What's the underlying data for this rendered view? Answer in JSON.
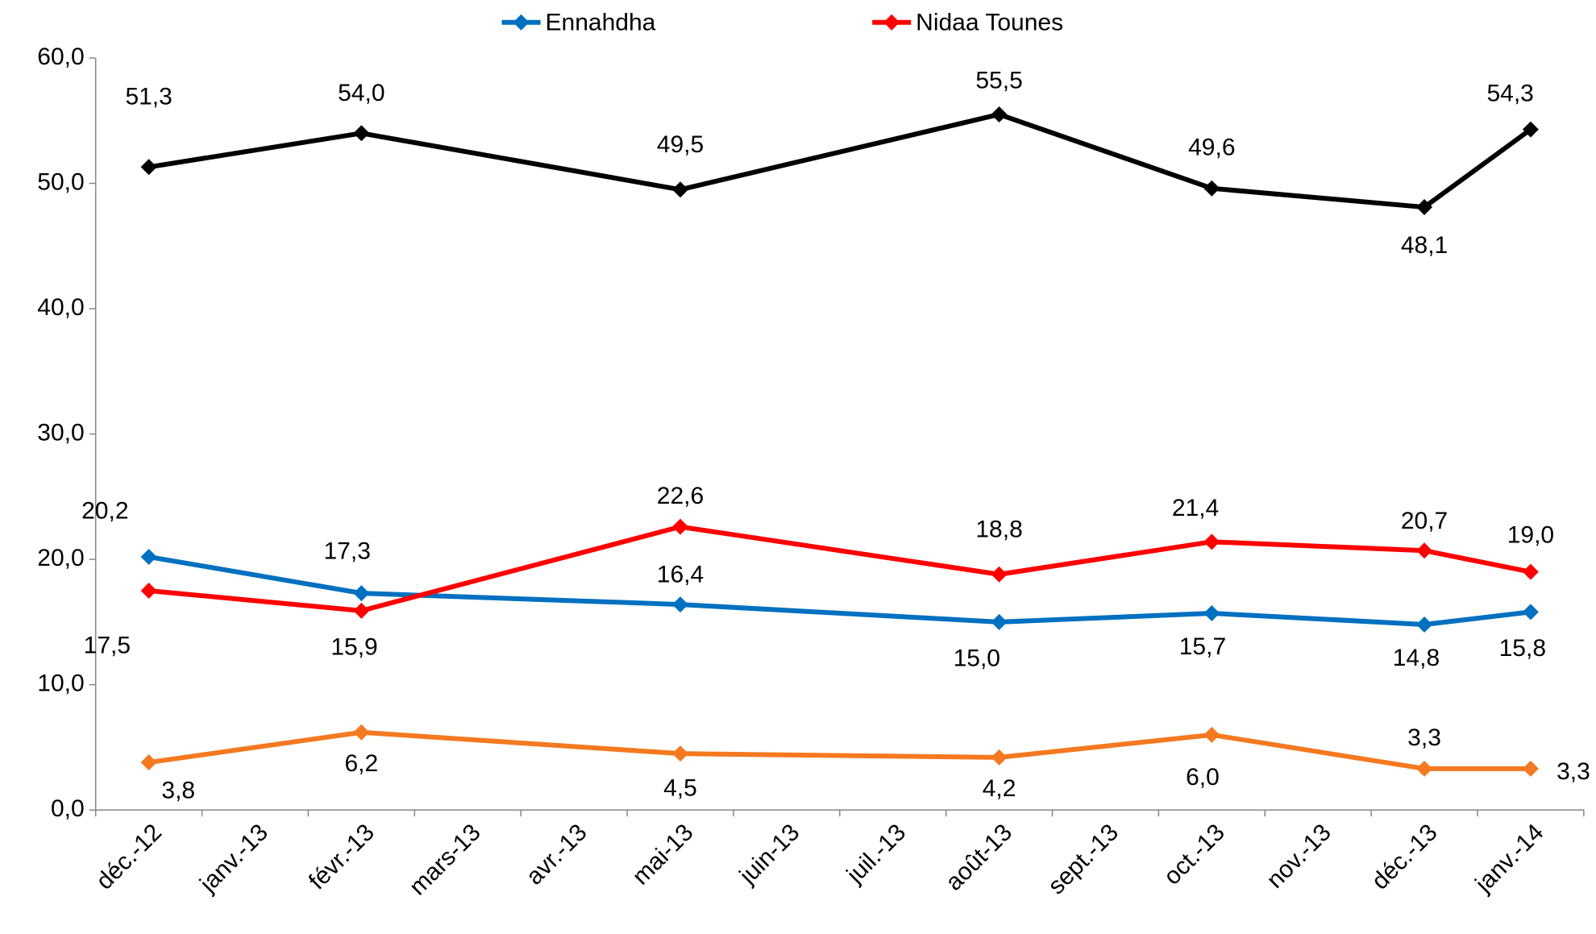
{
  "chart_data": {
    "type": "line",
    "categories": [
      "déc.-12",
      "janv.-13",
      "févr.-13",
      "mars-13",
      "avr.-13",
      "mai-13",
      "juin-13",
      "juil.-13",
      "août-13",
      "sept.-13",
      "oct.-13",
      "nov.-13",
      "déc.-13",
      "janv.-14"
    ],
    "ylim": [
      0,
      60
    ],
    "yticks": [
      {
        "value": 0,
        "label": "0,0"
      },
      {
        "value": 10,
        "label": "10,0"
      },
      {
        "value": 20,
        "label": "20,0"
      },
      {
        "value": 30,
        "label": "30,0"
      },
      {
        "value": 40,
        "label": "40,0"
      },
      {
        "value": 50,
        "label": "50,0"
      },
      {
        "value": 60,
        "label": "60,0"
      }
    ],
    "legend": "top",
    "series": [
      {
        "color": "#000000",
        "values": [
          51.3,
          null,
          54.0,
          null,
          null,
          49.5,
          null,
          null,
          55.5,
          null,
          49.6,
          null,
          48.1,
          54.3
        ],
        "value_labels": [
          "51,3",
          null,
          "54,0",
          null,
          null,
          "49,5",
          null,
          null,
          "55,5",
          null,
          "49,6",
          null,
          "48,1",
          "54,3"
        ]
      },
      {
        "name": "Ennahdha",
        "color": "#0070c0",
        "values": [
          20.2,
          null,
          17.3,
          null,
          null,
          16.4,
          null,
          null,
          15.0,
          null,
          15.7,
          null,
          14.8,
          15.8
        ],
        "value_labels": [
          "20,2",
          null,
          "17,3",
          null,
          null,
          "16,4",
          null,
          null,
          "15,0",
          null,
          "15,7",
          null,
          "14,8",
          "15,8"
        ]
      },
      {
        "name": "Nidaa Tounes",
        "color": "#ff0000",
        "values": [
          17.5,
          null,
          15.9,
          null,
          null,
          22.6,
          null,
          null,
          18.8,
          null,
          21.4,
          null,
          20.7,
          19.0
        ],
        "value_labels": [
          "17,5",
          null,
          "15,9",
          null,
          null,
          "22,6",
          null,
          null,
          "18,8",
          null,
          "21,4",
          null,
          "20,7",
          "19,0"
        ]
      },
      {
        "color": "#f47920",
        "values": [
          3.8,
          null,
          6.2,
          null,
          null,
          4.5,
          null,
          null,
          4.2,
          null,
          6.0,
          null,
          3.3,
          3.3
        ],
        "value_labels": [
          "3,8",
          null,
          "6,2",
          null,
          null,
          "4,5",
          null,
          null,
          "4,2",
          null,
          "6,0",
          null,
          "3,3",
          "3,3"
        ]
      }
    ]
  }
}
